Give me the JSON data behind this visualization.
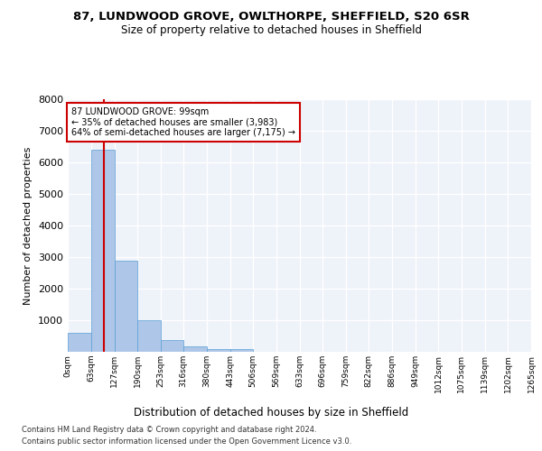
{
  "title_line1": "87, LUNDWOOD GROVE, OWLTHORPE, SHEFFIELD, S20 6SR",
  "title_line2": "Size of property relative to detached houses in Sheffield",
  "xlabel": "Distribution of detached houses by size in Sheffield",
  "ylabel": "Number of detached properties",
  "bin_edges": [
    0,
    63,
    127,
    190,
    253,
    316,
    380,
    443,
    506,
    569,
    633,
    696,
    759,
    822,
    886,
    949,
    1012,
    1075,
    1139,
    1202,
    1265
  ],
  "bin_labels": [
    "0sqm",
    "63sqm",
    "127sqm",
    "190sqm",
    "253sqm",
    "316sqm",
    "380sqm",
    "443sqm",
    "506sqm",
    "569sqm",
    "633sqm",
    "696sqm",
    "759sqm",
    "822sqm",
    "886sqm",
    "949sqm",
    "1012sqm",
    "1075sqm",
    "1139sqm",
    "1202sqm",
    "1265sqm"
  ],
  "bar_values": [
    600,
    6400,
    2900,
    1000,
    380,
    160,
    90,
    80,
    0,
    0,
    0,
    0,
    0,
    0,
    0,
    0,
    0,
    0,
    0,
    0
  ],
  "bar_color": "#aec6e8",
  "bar_edge_color": "#5a9fd4",
  "property_size": 99,
  "vline_color": "#cc0000",
  "annotation_text": "87 LUNDWOOD GROVE: 99sqm\n← 35% of detached houses are smaller (3,983)\n64% of semi-detached houses are larger (7,175) →",
  "annotation_box_color": "#ffffff",
  "annotation_box_edge": "#cc0000",
  "ylim": [
    0,
    8000
  ],
  "yticks": [
    0,
    1000,
    2000,
    3000,
    4000,
    5000,
    6000,
    7000,
    8000
  ],
  "background_color": "#eef2f9",
  "grid_color": "#ffffff",
  "footer_line1": "Contains HM Land Registry data © Crown copyright and database right 2024.",
  "footer_line2": "Contains public sector information licensed under the Open Government Licence v3.0."
}
